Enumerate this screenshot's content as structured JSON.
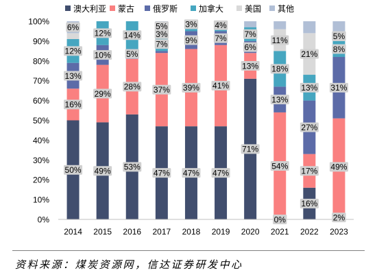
{
  "chart_data": {
    "type": "bar",
    "stacked": true,
    "percent": true,
    "legend": "top",
    "grid": false,
    "categories": [
      "2014",
      "2015",
      "2016",
      "2017",
      "2018",
      "2019",
      "2020",
      "2021",
      "2022",
      "2023"
    ],
    "ylim": [
      0,
      100
    ],
    "y_ticks": [
      "0%",
      "10%",
      "20%",
      "30%",
      "40%",
      "50%",
      "60%",
      "70%",
      "80%",
      "90%",
      "100%"
    ],
    "series": [
      {
        "name": "澳大利亚",
        "color": "#414E6E",
        "values": [
          50,
          49,
          53,
          47,
          47,
          47,
          71,
          0,
          16,
          2
        ],
        "labels": [
          "50%",
          "49%",
          "53%",
          "47%",
          "47%",
          "47%",
          "71%",
          "0%",
          "16%",
          "2%"
        ]
      },
      {
        "name": "蒙古",
        "color": "#FA8080",
        "values": [
          16,
          29,
          28,
          37,
          39,
          41,
          13,
          54,
          17,
          49
        ],
        "labels": [
          "16%",
          "29%",
          "28%",
          "37%",
          "39%",
          "41%",
          "13%",
          "54%",
          "17%",
          "49%"
        ]
      },
      {
        "name": "俄罗斯",
        "color": "#5C6BA8",
        "values": [
          13,
          10,
          5,
          1,
          9,
          7,
          6,
          13,
          27,
          31
        ],
        "labels": [
          "13%",
          "10%",
          "5%",
          null,
          "9%",
          "7%",
          "6%",
          "13%",
          "27%",
          "31%"
        ]
      },
      {
        "name": "加拿大",
        "color": "#46A6C0",
        "values": [
          12,
          12,
          14,
          7,
          2,
          1,
          7,
          18,
          13,
          8
        ],
        "labels": [
          "12%",
          "12%",
          "14%",
          "7%",
          null,
          null,
          "7%",
          "18%",
          "13%",
          "8%"
        ]
      },
      {
        "name": "美国",
        "color": "#D9D9D9",
        "values": [
          3,
          0,
          0,
          3,
          0,
          0,
          0,
          11,
          21,
          5
        ],
        "labels": [
          null,
          null,
          null,
          "3%",
          null,
          null,
          null,
          "11%",
          "21%",
          "5%"
        ]
      },
      {
        "name": "其他",
        "color": "#B1BFD6",
        "values": [
          6,
          0,
          0,
          5,
          3,
          4,
          3,
          4,
          6,
          5
        ],
        "labels": [
          "6%",
          null,
          null,
          "5%",
          "3%",
          "4%",
          null,
          null,
          null,
          null
        ]
      }
    ]
  },
  "source": "资料来源：煤炭资源网，信达证券研发中心"
}
